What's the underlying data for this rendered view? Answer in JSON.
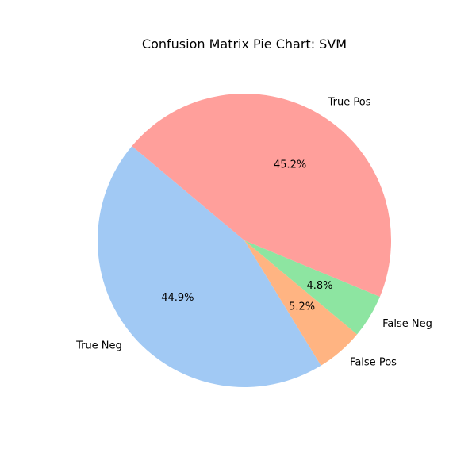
{
  "chart_data": {
    "type": "pie",
    "title": "Confusion Matrix Pie Chart: SVM",
    "start_angle_deg": 140,
    "direction": "counterclockwise",
    "slices": [
      {
        "label": "True Neg",
        "value": 44.9,
        "pct_label": "44.9%",
        "color": "#a1c9f4"
      },
      {
        "label": "False Pos",
        "value": 5.2,
        "pct_label": "5.2%",
        "color": "#ffb482"
      },
      {
        "label": "False Neg",
        "value": 4.8,
        "pct_label": "4.8%",
        "color": "#8de5a1"
      },
      {
        "label": "True Pos",
        "value": 45.2,
        "pct_label": "45.2%",
        "color": "#ff9f9b"
      }
    ]
  }
}
